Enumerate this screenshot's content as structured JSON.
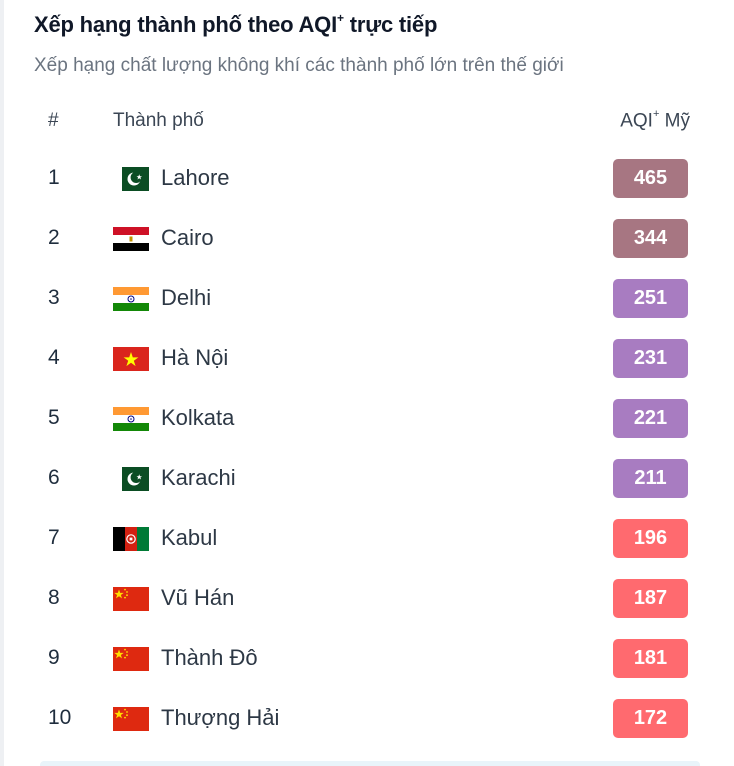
{
  "header": {
    "title": "Xếp hạng thành phố theo AQI",
    "title_superscript": "+",
    "title_suffix": " trực tiếp",
    "subtitle": "Xếp hạng chất lượng không khí các thành phố lớn trên thế giới"
  },
  "table": {
    "columns": {
      "rank": "#",
      "city": "Thành phố",
      "aqi": "AQI",
      "aqi_superscript": "+",
      "aqi_suffix": " Mỹ"
    },
    "rows": [
      {
        "rank": "1",
        "city": "Lahore",
        "flag": "pakistan-flag-icon",
        "aqi": "465",
        "color": "#a77682"
      },
      {
        "rank": "2",
        "city": "Cairo",
        "flag": "egypt-flag-icon",
        "aqi": "344",
        "color": "#a77682"
      },
      {
        "rank": "3",
        "city": "Delhi",
        "flag": "india-flag-icon",
        "aqi": "251",
        "color": "#a87cc1"
      },
      {
        "rank": "4",
        "city": "Hà Nội",
        "flag": "vietnam-flag-icon",
        "aqi": "231",
        "color": "#a87cc1"
      },
      {
        "rank": "5",
        "city": "Kolkata",
        "flag": "india-flag-icon",
        "aqi": "221",
        "color": "#a87cc1"
      },
      {
        "rank": "6",
        "city": "Karachi",
        "flag": "pakistan-flag-icon",
        "aqi": "211",
        "color": "#a87cc1"
      },
      {
        "rank": "7",
        "city": "Kabul",
        "flag": "afghanistan-flag-icon",
        "aqi": "196",
        "color": "#ff6a6f"
      },
      {
        "rank": "8",
        "city": "Vũ Hán",
        "flag": "china-flag-icon",
        "aqi": "187",
        "color": "#ff6a6f"
      },
      {
        "rank": "9",
        "city": "Thành Đô",
        "flag": "china-flag-icon",
        "aqi": "181",
        "color": "#ff6a6f"
      },
      {
        "rank": "10",
        "city": "Thượng Hải",
        "flag": "china-flag-icon",
        "aqi": "172",
        "color": "#ff6a6f"
      }
    ]
  }
}
